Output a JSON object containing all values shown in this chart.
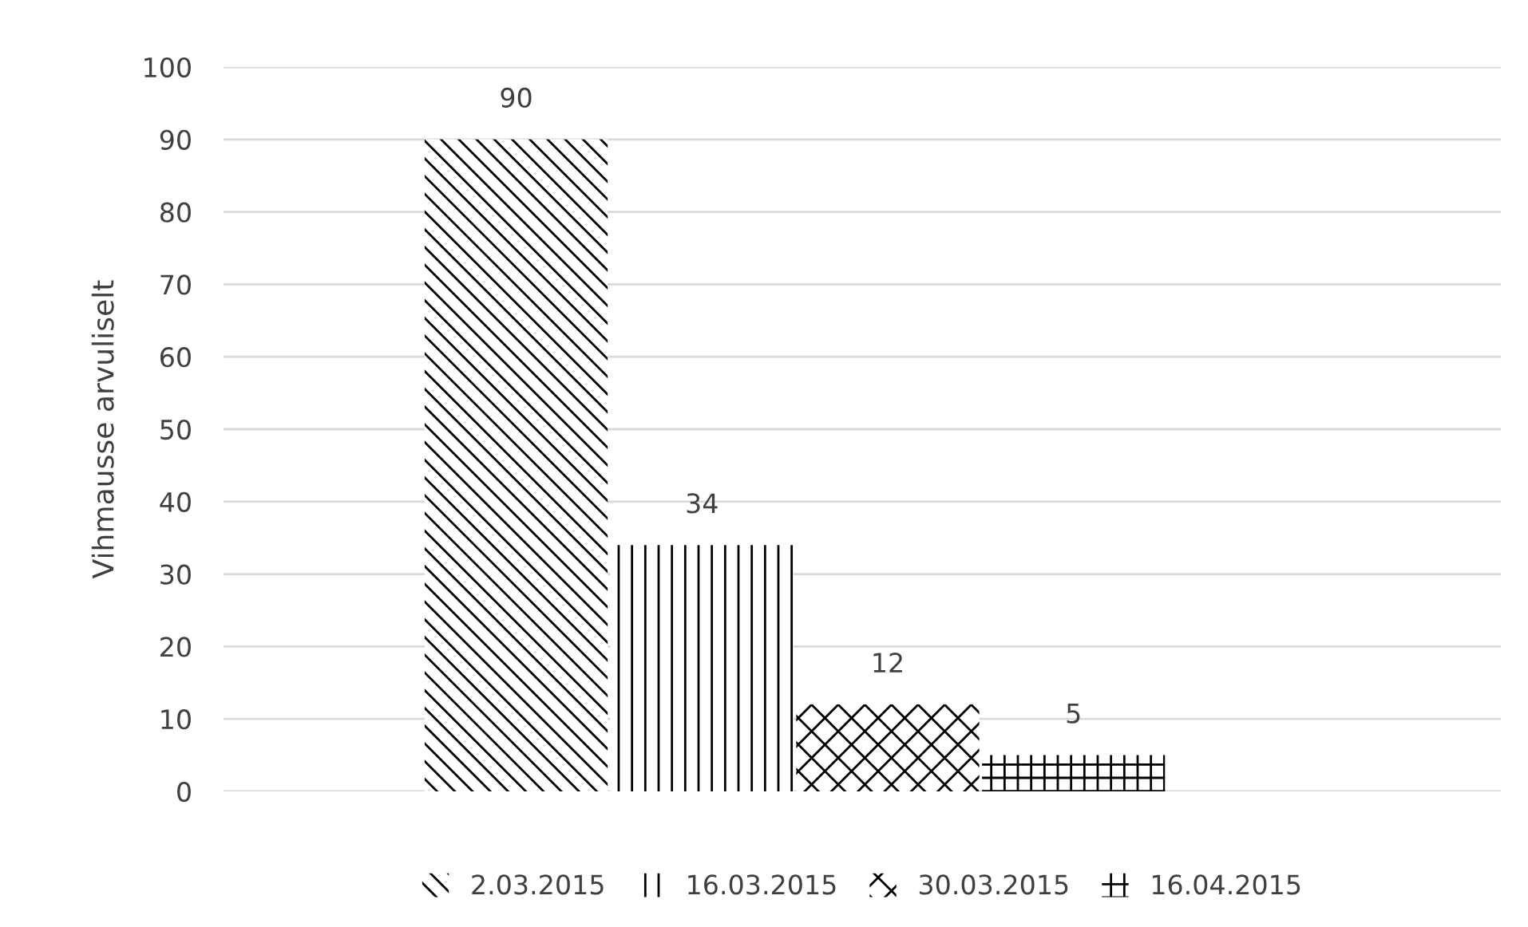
{
  "chart_data": {
    "type": "bar",
    "ylabel": "Vihmausse arvuliselt",
    "categories": [
      null
    ],
    "series": [
      {
        "name": "2.03.2015",
        "color": "#000000",
        "values": [
          90
        ]
      },
      {
        "name": "16.03.2015",
        "color": "#000000",
        "values": [
          34
        ]
      },
      {
        "name": "30.03.2015",
        "color": "#000000",
        "values": [
          12
        ]
      },
      {
        "name": "16.04.2015",
        "color": "#000000",
        "values": [
          5
        ]
      }
    ],
    "ylim": [
      0,
      100
    ],
    "yticks": [
      0,
      10,
      20,
      30,
      40,
      50,
      60,
      70,
      80,
      90,
      100
    ],
    "grid": "y",
    "legend": "bottom",
    "data_labels": true
  }
}
